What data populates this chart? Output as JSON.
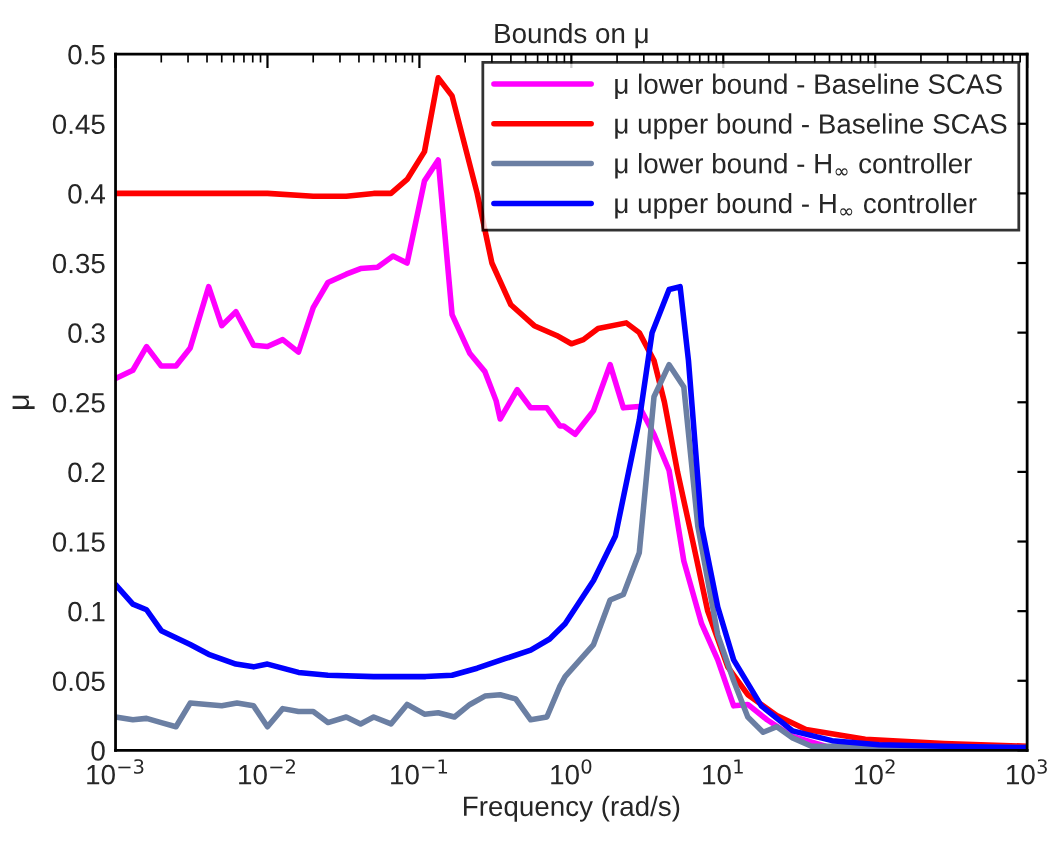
{
  "chart_data": {
    "type": "line",
    "title": "Bounds on μ",
    "xlabel": "Frequency (rad/s)",
    "ylabel": "μ",
    "log": "x",
    "xlim": [
      0.001,
      1000
    ],
    "ylim": [
      0,
      0.5
    ],
    "xticks": [
      {
        "value": 0.001,
        "label": "10$^{−3}$"
      },
      {
        "value": 0.01,
        "label": "10$^{−2}$"
      },
      {
        "value": 0.1,
        "label": "10$^{−1}$"
      },
      {
        "value": 1,
        "label": "10$^{0}$"
      },
      {
        "value": 10,
        "label": "10$^{1}$"
      },
      {
        "value": 100,
        "label": "10$^{2}$"
      },
      {
        "value": 1000,
        "label": "10$^{3}$"
      }
    ],
    "yticks": [
      0,
      0.05,
      0.1,
      0.15,
      0.2,
      0.25,
      0.3,
      0.35,
      0.4,
      0.45,
      0.5
    ],
    "grid": false,
    "legend": "top right",
    "marker": "none",
    "line_style": "solid",
    "series": [
      {
        "name": "μ lower bound - Baseline SCAS",
        "color": "#ff00ff",
        "x": [
          0.001,
          0.0013,
          0.0016,
          0.002,
          0.0025,
          0.0031,
          0.0041,
          0.005,
          0.0062,
          0.0081,
          0.01,
          0.0126,
          0.016,
          0.02,
          0.025,
          0.033,
          0.041,
          0.053,
          0.067,
          0.083,
          0.108,
          0.133,
          0.164,
          0.215,
          0.27,
          0.32,
          0.34,
          0.44,
          0.54,
          0.69,
          0.84,
          0.89,
          1.06,
          1.4,
          1.8,
          2.2,
          2.8,
          3.5,
          4.4,
          5.5,
          7.2,
          9.2,
          11.7,
          14.5,
          19.4,
          28.6,
          47
        ],
        "values": [
          0.267,
          0.273,
          0.29,
          0.276,
          0.276,
          0.289,
          0.333,
          0.305,
          0.315,
          0.291,
          0.29,
          0.295,
          0.286,
          0.318,
          0.336,
          0.342,
          0.346,
          0.347,
          0.355,
          0.35,
          0.409,
          0.424,
          0.313,
          0.285,
          0.272,
          0.251,
          0.238,
          0.259,
          0.246,
          0.246,
          0.233,
          0.233,
          0.227,
          0.244,
          0.277,
          0.246,
          0.247,
          0.227,
          0.201,
          0.136,
          0.091,
          0.065,
          0.032,
          0.033,
          0.022,
          0.01,
          0.003
        ]
      },
      {
        "name": "μ upper bound - Baseline SCAS",
        "color": "#ff0000",
        "x": [
          0.001,
          0.003,
          0.01,
          0.02,
          0.033,
          0.05,
          0.065,
          0.083,
          0.108,
          0.133,
          0.164,
          0.24,
          0.3,
          0.4,
          0.57,
          0.8,
          1.0,
          1.2,
          1.5,
          2.3,
          2.8,
          3.5,
          4.1,
          5.0,
          6.3,
          7.9,
          10.7,
          14.5,
          22.5,
          35,
          86,
          284,
          1000
        ],
        "values": [
          0.4,
          0.4,
          0.4,
          0.398,
          0.398,
          0.4,
          0.4,
          0.41,
          0.43,
          0.483,
          0.47,
          0.4,
          0.35,
          0.32,
          0.305,
          0.298,
          0.292,
          0.295,
          0.303,
          0.307,
          0.3,
          0.28,
          0.25,
          0.2,
          0.15,
          0.1,
          0.06,
          0.04,
          0.025,
          0.015,
          0.008,
          0.005,
          0.003
        ]
      },
      {
        "name": "μ lower bound - H$_{∞}$ controller",
        "color": "#6b7fa3",
        "x": [
          0.001,
          0.0013,
          0.0016,
          0.002,
          0.0025,
          0.0031,
          0.004,
          0.005,
          0.0063,
          0.0081,
          0.01,
          0.0126,
          0.016,
          0.02,
          0.025,
          0.033,
          0.041,
          0.05,
          0.065,
          0.083,
          0.108,
          0.133,
          0.17,
          0.215,
          0.27,
          0.34,
          0.43,
          0.54,
          0.69,
          0.84,
          0.91,
          1.4,
          1.8,
          2.2,
          2.8,
          3.5,
          4.4,
          5.5,
          6.8,
          9.2,
          11.7,
          14.5,
          18.3,
          22.5,
          28.6,
          38,
          64,
          1000
        ],
        "values": [
          0.024,
          0.022,
          0.023,
          0.02,
          0.017,
          0.034,
          0.033,
          0.032,
          0.034,
          0.032,
          0.017,
          0.03,
          0.028,
          0.028,
          0.02,
          0.024,
          0.019,
          0.024,
          0.019,
          0.033,
          0.026,
          0.027,
          0.024,
          0.033,
          0.039,
          0.04,
          0.037,
          0.022,
          0.024,
          0.046,
          0.053,
          0.076,
          0.108,
          0.112,
          0.142,
          0.254,
          0.277,
          0.261,
          0.161,
          0.083,
          0.05,
          0.024,
          0.013,
          0.017,
          0.009,
          0.003,
          0.003,
          0.002
        ]
      },
      {
        "name": "μ upper bound - H$_{∞}$ controller",
        "color": "#0000ff",
        "x": [
          0.001,
          0.0013,
          0.0016,
          0.002,
          0.0031,
          0.0041,
          0.0062,
          0.0081,
          0.01,
          0.016,
          0.025,
          0.05,
          0.11,
          0.164,
          0.24,
          0.37,
          0.54,
          0.72,
          0.91,
          1.4,
          1.95,
          2.8,
          3.4,
          4.4,
          5.2,
          5.9,
          7.2,
          9.2,
          11.7,
          17.8,
          28.6,
          52,
          106,
          284,
          1000
        ],
        "values": [
          0.119,
          0.105,
          0.101,
          0.086,
          0.076,
          0.069,
          0.062,
          0.06,
          0.062,
          0.056,
          0.054,
          0.053,
          0.053,
          0.054,
          0.059,
          0.066,
          0.072,
          0.08,
          0.091,
          0.122,
          0.154,
          0.237,
          0.3,
          0.331,
          0.333,
          0.28,
          0.161,
          0.103,
          0.065,
          0.032,
          0.014,
          0.007,
          0.004,
          0.003,
          0.002
        ]
      }
    ]
  }
}
